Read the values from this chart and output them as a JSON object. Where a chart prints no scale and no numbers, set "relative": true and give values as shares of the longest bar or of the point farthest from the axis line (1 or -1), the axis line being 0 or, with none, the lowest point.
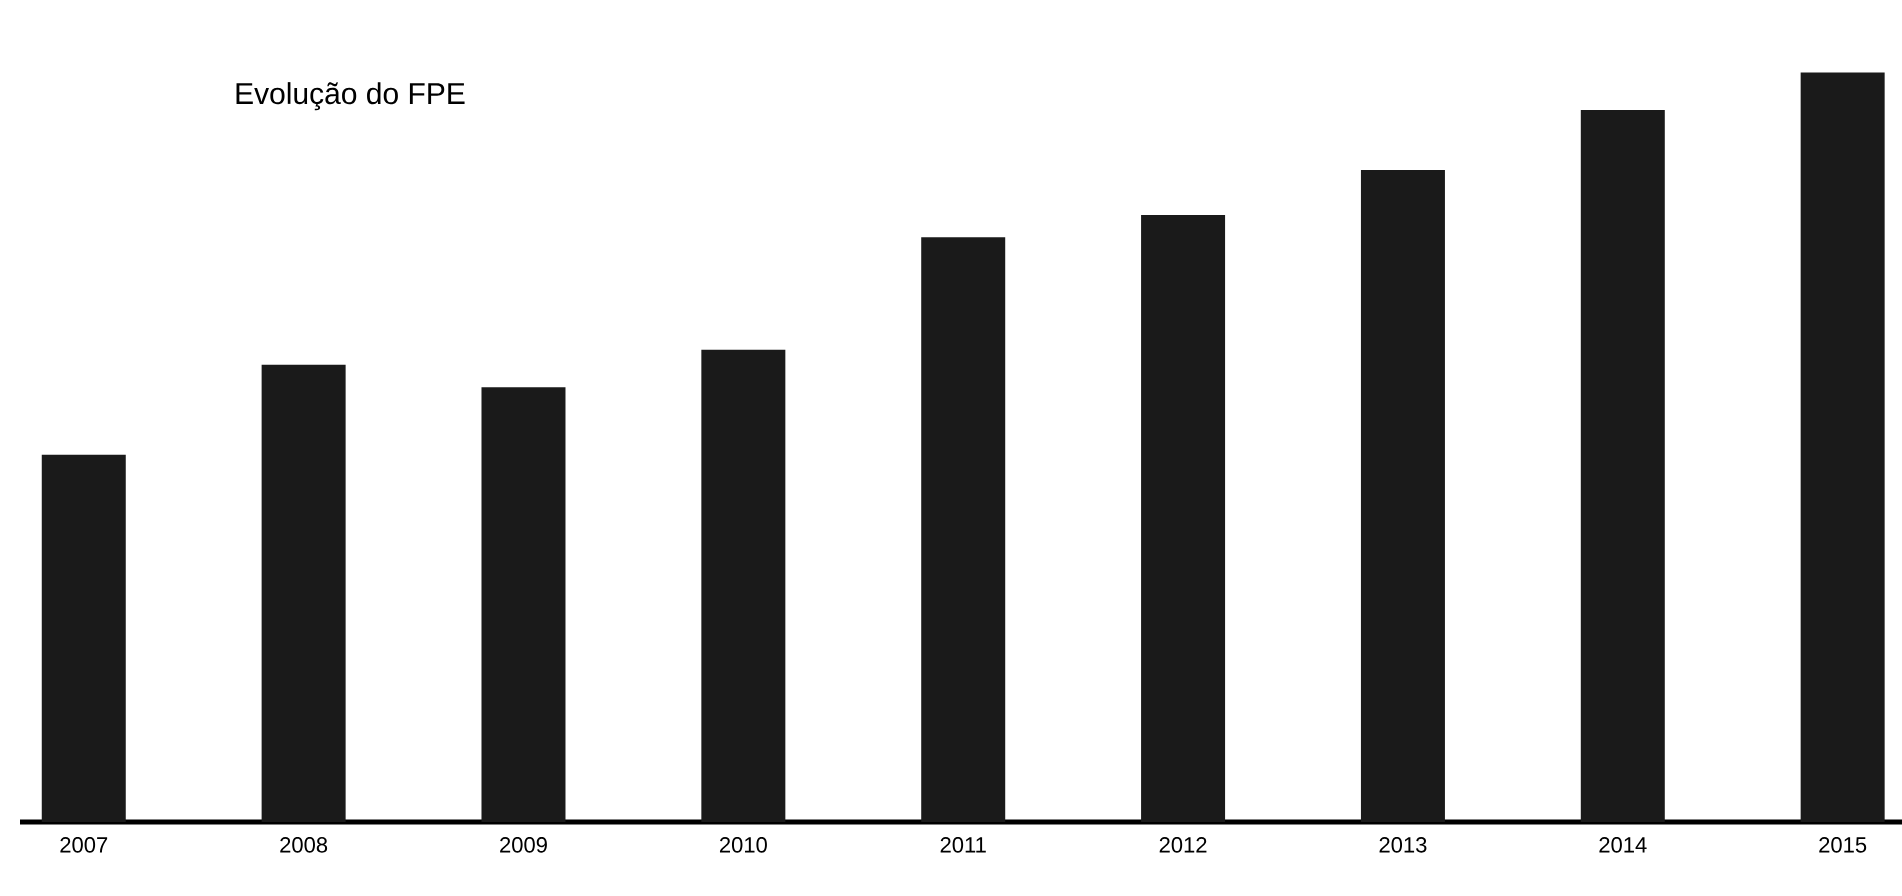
{
  "chart_data": {
    "type": "bar",
    "title": "Evolução do FPE",
    "categories": [
      "2007",
      "2008",
      "2009",
      "2010",
      "2011",
      "2012",
      "2013",
      "2014",
      "2015"
    ],
    "values": [
      0.49,
      0.61,
      0.58,
      0.63,
      0.78,
      0.81,
      0.87,
      0.95,
      1
    ],
    "color": "#1a1a1a",
    "relative": true
  }
}
